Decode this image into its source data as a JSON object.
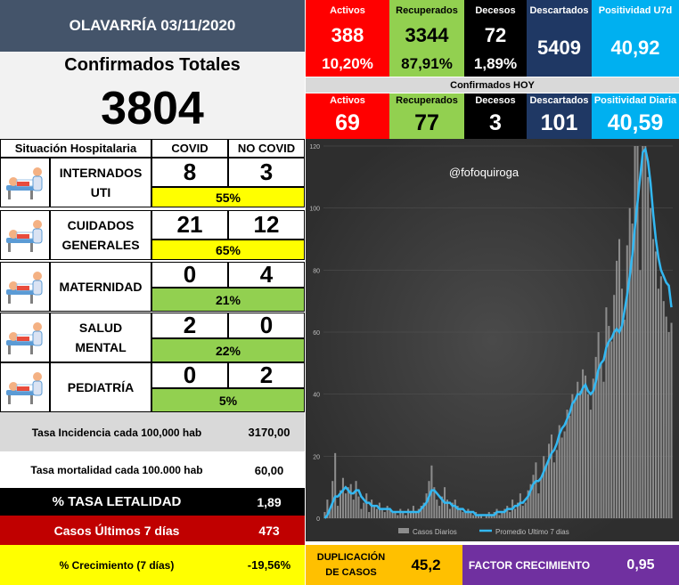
{
  "header": {
    "title": "OLAVARRÍA 03/11/2020"
  },
  "confirmed": {
    "label": "Confirmados Totales",
    "value": "3804"
  },
  "hospital": {
    "headers": {
      "situation": "Situación Hospitalaria",
      "covid": "COVID",
      "no_covid": "NO COVID"
    },
    "rows": [
      {
        "label_line1": "INTERNADOS",
        "label_line2": "UTI",
        "covid": "8",
        "no_covid": "3",
        "pct": "55%",
        "pct_color": "yellow"
      },
      {
        "label_line1": "CUIDADOS",
        "label_line2": "GENERALES",
        "covid": "21",
        "no_covid": "12",
        "pct": "65%",
        "pct_color": "yellow"
      },
      {
        "label_line1": "MATERNIDAD",
        "label_line2": "",
        "covid": "0",
        "no_covid": "4",
        "pct": "21%",
        "pct_color": "green"
      },
      {
        "label_line1": "SALUD",
        "label_line2": "MENTAL",
        "covid": "2",
        "no_covid": "0",
        "pct": "22%",
        "pct_color": "green"
      },
      {
        "label_line1": "PEDIATRÍA",
        "label_line2": "",
        "covid": "0",
        "no_covid": "2",
        "pct": "5%",
        "pct_color": "green"
      }
    ],
    "icons": [
      "icu-bed-icon",
      "patient-bed-icon",
      "patient-bed-icon",
      "patient-bed-icon",
      "patient-bed-icon"
    ]
  },
  "stats": {
    "incidence": {
      "label": "Tasa Incidencia cada 100,000 hab",
      "value": "3170,00"
    },
    "mortality": {
      "label": "Tasa mortalidad cada 100.000 hab",
      "value": "60,00"
    },
    "lethality": {
      "label": "% TASA LETALIDAD",
      "value": "1,89"
    },
    "last7": {
      "label": "Casos Últimos 7 días",
      "value": "473"
    },
    "growth": {
      "label": "% Crecimiento (7 días)",
      "value": "-19,56%"
    }
  },
  "totals": {
    "activos": {
      "title": "Activos",
      "value": "388",
      "pct": "10,20%"
    },
    "recuperados": {
      "title": "Recuperados",
      "value": "3344",
      "pct": "87,91%"
    },
    "decesos": {
      "title": "Decesos",
      "value": "72",
      "pct": "1,89%"
    },
    "descartados": {
      "title": "Descartados",
      "value": "5409"
    },
    "positividad": {
      "title": "Positividad U7d",
      "value": "40,92"
    }
  },
  "today": {
    "label": "Confirmados HOY",
    "activos": {
      "title": "Activos",
      "value": "69"
    },
    "recuperados": {
      "title": "Recuperados",
      "value": "77"
    },
    "decesos": {
      "title": "Decesos",
      "value": "3"
    },
    "descartados": {
      "title": "Descartados",
      "value": "101"
    },
    "positividad": {
      "title": "Positividad Diaria",
      "value": "40,59"
    }
  },
  "colors": {
    "red": "#ff0000",
    "green": "#92d050",
    "black": "#000000",
    "navy": "#1f3864",
    "cyan": "#00b0f0",
    "header": "#44546a",
    "yellow": "#ffff00",
    "orange": "#ffc000",
    "purple": "#7030a0",
    "darkred": "#c00000",
    "gray": "#d9d9d9"
  },
  "footer": {
    "duplication": {
      "label_line1": "DUPLICACIÓN",
      "label_line2": "DE CASOS",
      "value": "45,2"
    },
    "factor": {
      "label": "FACTOR CRECIMIENTO",
      "value": "0,95"
    }
  },
  "chart_data": {
    "type": "bar",
    "watermark": "@fofoquiroga",
    "ylim": [
      0,
      120
    ],
    "yticks": [
      "0",
      "20",
      "40",
      "60",
      "80",
      "100",
      "120"
    ],
    "legend": [
      "Casos Diarios",
      "Promedio Ultimo 7 dias"
    ],
    "legend_position": "bottom",
    "series": [
      {
        "name": "Casos Diarios",
        "type": "bar",
        "values": [
          2,
          6,
          3,
          12,
          21,
          4,
          9,
          13,
          8,
          10,
          11,
          6,
          12,
          7,
          3,
          5,
          8,
          2,
          6,
          4,
          3,
          5,
          3,
          2,
          4,
          3,
          2,
          2,
          1,
          3,
          2,
          1,
          3,
          2,
          4,
          2,
          3,
          4,
          5,
          8,
          12,
          17,
          10,
          6,
          4,
          7,
          10,
          6,
          3,
          5,
          6,
          4,
          3,
          2,
          2,
          3,
          2,
          1,
          2,
          1,
          1,
          0,
          1,
          2,
          1,
          2,
          3,
          1,
          2,
          3,
          4,
          2,
          6,
          3,
          5,
          8,
          4,
          5,
          9,
          11,
          14,
          18,
          8,
          13,
          20,
          17,
          24,
          27,
          18,
          22,
          30,
          26,
          28,
          35,
          33,
          40,
          38,
          44,
          41,
          48,
          46,
          40,
          35,
          45,
          52,
          60,
          50,
          44,
          68,
          62,
          57,
          72,
          83,
          90,
          74,
          64,
          88,
          100,
          95,
          120,
          120,
          80,
          120,
          120,
          110,
          100,
          90,
          86,
          74,
          78,
          70,
          65,
          60,
          63
        ]
      },
      {
        "name": "Promedio Ultimo 7 dias",
        "type": "line",
        "values": [
          0,
          1,
          3,
          5,
          7,
          7,
          8,
          9,
          10,
          9,
          8,
          8,
          9,
          9,
          7,
          6,
          5,
          5,
          4,
          4,
          4,
          3,
          3,
          3,
          3,
          3,
          2,
          2,
          2,
          2,
          2,
          2,
          2,
          2,
          2,
          2,
          2,
          3,
          4,
          5,
          7,
          9,
          9,
          8,
          7,
          6,
          5,
          5,
          5,
          4,
          4,
          3,
          3,
          3,
          2,
          2,
          2,
          2,
          1,
          1,
          1,
          1,
          1,
          1,
          1,
          1,
          2,
          2,
          2,
          2,
          3,
          3,
          3,
          4,
          4,
          5,
          5,
          6,
          7,
          9,
          11,
          12,
          12,
          13,
          15,
          17,
          19,
          21,
          22,
          24,
          27,
          29,
          30,
          32,
          34,
          37,
          38,
          40,
          40,
          42,
          43,
          41,
          40,
          41,
          44,
          48,
          50,
          51,
          55,
          57,
          58,
          60,
          61,
          60,
          62,
          67,
          72,
          78,
          85,
          94,
          102,
          110,
          118,
          119,
          115,
          108,
          98,
          90,
          84,
          80,
          78,
          76,
          75,
          68
        ]
      }
    ]
  }
}
